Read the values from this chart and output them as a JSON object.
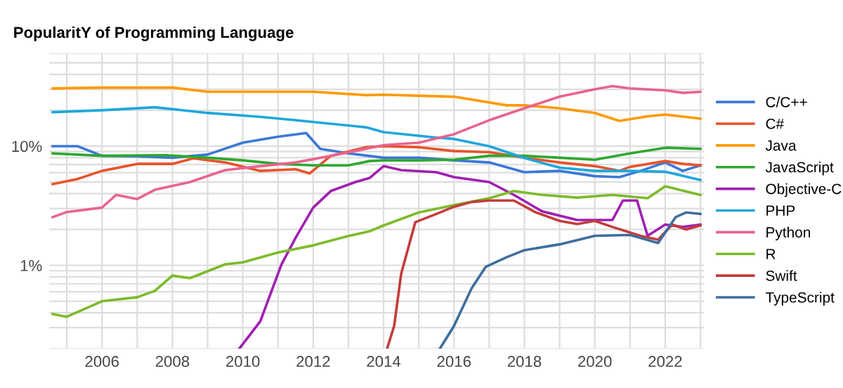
{
  "chart_data": {
    "type": "line",
    "title": "PopularitY of Programming Language",
    "log": "y",
    "grid": true,
    "legend": "right",
    "marker": "none",
    "line_style": "solid",
    "xlim": [
      2004.5,
      2023.1
    ],
    "ylim": [
      0.2,
      60
    ],
    "xticks": [
      {
        "value": 2005,
        "label": null
      },
      2006,
      {
        "value": 2007,
        "label": null
      },
      2008,
      {
        "value": 2009,
        "label": null
      },
      2010,
      {
        "value": 2011,
        "label": null
      },
      2012,
      {
        "value": 2013,
        "label": null
      },
      2014,
      {
        "value": 2015,
        "label": null
      },
      2016,
      {
        "value": 2017,
        "label": null
      },
      2018,
      {
        "value": 2019,
        "label": null
      },
      2020,
      {
        "value": 2021,
        "label": null
      },
      2022,
      {
        "value": 2023,
        "label": null
      }
    ],
    "yticks": [
      {
        "value": 0.2,
        "label": null
      },
      {
        "value": 0.3,
        "label": null
      },
      {
        "value": 0.4,
        "label": null
      },
      {
        "value": 0.5,
        "label": null
      },
      {
        "value": 0.6,
        "label": null
      },
      {
        "value": 0.7,
        "label": null
      },
      {
        "value": 0.8,
        "label": null
      },
      {
        "value": 0.9,
        "label": null
      },
      {
        "value": 1,
        "label": "1%"
      },
      {
        "value": 2,
        "label": null
      },
      {
        "value": 3,
        "label": null
      },
      {
        "value": 4,
        "label": null
      },
      {
        "value": 5,
        "label": null
      },
      {
        "value": 6,
        "label": null
      },
      {
        "value": 7,
        "label": null
      },
      {
        "value": 8,
        "label": null
      },
      {
        "value": 9,
        "label": null
      },
      {
        "value": 10,
        "label": "10%"
      },
      {
        "value": 20,
        "label": null
      },
      {
        "value": 30,
        "label": null
      },
      {
        "value": 40,
        "label": null
      },
      {
        "value": 50,
        "label": null
      },
      {
        "value": 60,
        "label": null
      }
    ],
    "series": [
      {
        "name": "C/C++",
        "color": "#3c78d8",
        "x": [
          2004.6,
          2005.3,
          2006,
          2007,
          2008,
          2009,
          2010,
          2011,
          2011.8,
          2012.2,
          2013,
          2014,
          2015,
          2016,
          2017,
          2018,
          2019,
          2020,
          2020.7,
          2021.3,
          2022,
          2022.5,
          2023
        ],
        "values": [
          10,
          10,
          8.3,
          8.2,
          8,
          8.5,
          10.7,
          12,
          12.9,
          9.5,
          8.7,
          8,
          8,
          7.6,
          7.3,
          6.05,
          6.2,
          5.6,
          5.5,
          6.2,
          7.3,
          6.2,
          6.9
        ]
      },
      {
        "name": "C#",
        "color": "#e8532b",
        "x": [
          2004.6,
          2005.3,
          2006,
          2007,
          2008,
          2008.6,
          2009.5,
          2010.5,
          2011.5,
          2011.9,
          2012.5,
          2013.5,
          2014,
          2015,
          2016,
          2017,
          2018,
          2019,
          2020,
          2020.7,
          2021,
          2022,
          2022.5,
          2023
        ],
        "values": [
          4.8,
          5.3,
          6.2,
          7.1,
          7.1,
          7.9,
          7.3,
          6.2,
          6.4,
          5.9,
          8.3,
          9.8,
          10,
          9.8,
          9.1,
          8.9,
          8,
          7.3,
          6.8,
          6.2,
          6.7,
          7.5,
          7.1,
          6.9
        ]
      },
      {
        "name": "Java",
        "color": "#ff9900",
        "x": [
          2004.6,
          2006,
          2008,
          2009,
          2012,
          2013.5,
          2014,
          2016,
          2017.5,
          2018,
          2019,
          2020,
          2020.7,
          2021.5,
          2022,
          2023
        ],
        "values": [
          30.5,
          31,
          31,
          28.6,
          28.6,
          26.8,
          27,
          26,
          22,
          22,
          20.8,
          19,
          16.3,
          17.8,
          18.4,
          17
        ]
      },
      {
        "name": "JavaScript",
        "color": "#2ea82e",
        "x": [
          2004.6,
          2006,
          2007.8,
          2009,
          2010,
          2011,
          2012,
          2013,
          2013.6,
          2014,
          2015,
          2016,
          2017,
          2018,
          2019,
          2020,
          2021,
          2022,
          2023
        ],
        "values": [
          8.7,
          8.3,
          8.4,
          8,
          7.6,
          7.1,
          6.9,
          6.9,
          7.5,
          7.6,
          7.6,
          7.7,
          8.3,
          8.3,
          8,
          7.7,
          8.7,
          9.7,
          9.5
        ]
      },
      {
        "name": "Objective-C",
        "color": "#a020b0",
        "x": [
          2009.9,
          2010.2,
          2010.5,
          2010.8,
          2011.1,
          2011.5,
          2012,
          2012.5,
          2013.2,
          2013.6,
          2014,
          2014.5,
          2015.5,
          2016,
          2017,
          2017.7,
          2018.5,
          2019.5,
          2020.5,
          2020.8,
          2021.2,
          2021.5,
          2022,
          2022.5,
          2023
        ],
        "values": [
          0.2,
          0.26,
          0.34,
          0.59,
          1.02,
          1.7,
          3.05,
          4.2,
          5,
          5.4,
          6.8,
          6.3,
          6.05,
          5.5,
          5,
          3.9,
          2.84,
          2.4,
          2.4,
          3.5,
          3.5,
          1.77,
          2.2,
          2.1,
          2.2
        ]
      },
      {
        "name": "PHP",
        "color": "#1fa7dc",
        "x": [
          2004.6,
          2006,
          2007.5,
          2009,
          2010.5,
          2011.5,
          2013.5,
          2014,
          2015.5,
          2016,
          2017,
          2018,
          2019,
          2020,
          2021,
          2022,
          2023
        ],
        "values": [
          19.3,
          20,
          21.2,
          19,
          17.6,
          16.5,
          14.4,
          13.1,
          11.8,
          11.5,
          10,
          7.95,
          6.6,
          6.2,
          6.2,
          6.1,
          5.2
        ]
      },
      {
        "name": "Python",
        "color": "#e8648e",
        "x": [
          2004.6,
          2005,
          2006,
          2006.4,
          2007,
          2007.5,
          2008.5,
          2009.5,
          2010.5,
          2011.5,
          2012.5,
          2013.5,
          2014,
          2015,
          2016,
          2017,
          2018,
          2019,
          2020,
          2020.5,
          2021,
          2022,
          2022.5,
          2023
        ],
        "values": [
          2.54,
          2.8,
          3.05,
          3.9,
          3.6,
          4.3,
          5,
          6.3,
          6.8,
          7.3,
          8.3,
          9.5,
          10.2,
          10.7,
          12.6,
          16.5,
          20.8,
          26,
          30,
          31.9,
          30.5,
          29.4,
          28,
          28.6
        ]
      },
      {
        "name": "R",
        "color": "#7cbb2b",
        "x": [
          2004.6,
          2005,
          2005.5,
          2006,
          2007,
          2007.5,
          2008,
          2008.5,
          2009.5,
          2010,
          2011,
          2012,
          2013,
          2013.6,
          2014,
          2015,
          2016,
          2017,
          2017.7,
          2018.5,
          2019.5,
          2020.5,
          2021.5,
          2022,
          2023
        ],
        "values": [
          0.39,
          0.37,
          0.43,
          0.5,
          0.54,
          0.61,
          0.82,
          0.78,
          1.02,
          1.06,
          1.28,
          1.47,
          1.76,
          1.93,
          2.16,
          2.78,
          3.2,
          3.66,
          4.2,
          3.9,
          3.7,
          3.9,
          3.66,
          4.6,
          3.9
        ]
      },
      {
        "name": "Swift",
        "color": "#c43c3c",
        "x": [
          2014.1,
          2014.3,
          2014.5,
          2014.9,
          2015.5,
          2016,
          2016.5,
          2017,
          2017.7,
          2018.3,
          2019,
          2019.5,
          2020,
          2020.5,
          2021.3,
          2021.8,
          2022.2,
          2022.6,
          2023
        ],
        "values": [
          0.2,
          0.31,
          0.85,
          2.3,
          2.7,
          3.1,
          3.4,
          3.5,
          3.5,
          2.8,
          2.36,
          2.22,
          2.36,
          2.1,
          1.77,
          1.64,
          2.2,
          2,
          2.16
        ]
      },
      {
        "name": "TypeScript",
        "color": "#3e6e9e",
        "x": [
          2015.6,
          2016,
          2016.5,
          2016.9,
          2017.5,
          2018,
          2019,
          2020,
          2021,
          2021.8,
          2022.3,
          2022.6,
          2023
        ],
        "values": [
          0.2,
          0.31,
          0.64,
          0.97,
          1.17,
          1.34,
          1.5,
          1.77,
          1.8,
          1.54,
          2.54,
          2.78,
          2.7
        ]
      }
    ]
  }
}
